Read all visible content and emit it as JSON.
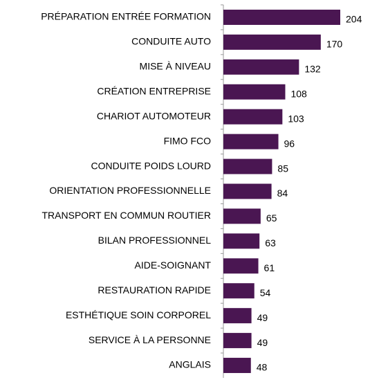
{
  "chart_data": {
    "type": "hbar",
    "categories": [
      "PRÉPARATION ENTRÉE FORMATION",
      "CONDUITE AUTO",
      "MISE À NIVEAU",
      "CRÉATION ENTREPRISE",
      "CHARIOT AUTOMOTEUR",
      "FIMO FCO",
      "CONDUITE POIDS LOURD",
      "ORIENTATION PROFESSIONNELLE",
      "TRANSPORT EN COMMUN ROUTIER",
      "BILAN PROFESSIONNEL",
      "AIDE-SOIGNANT",
      "RESTAURATION RAPIDE",
      "ESTHÉTIQUE SOIN CORPOREL",
      "SERVICE À LA PERSONNE",
      "ANGLAIS"
    ],
    "values": [
      204,
      170,
      132,
      108,
      103,
      96,
      85,
      84,
      65,
      63,
      61,
      54,
      49,
      49,
      48
    ],
    "color": "#4a1652",
    "xlim": [
      0,
      204
    ]
  }
}
